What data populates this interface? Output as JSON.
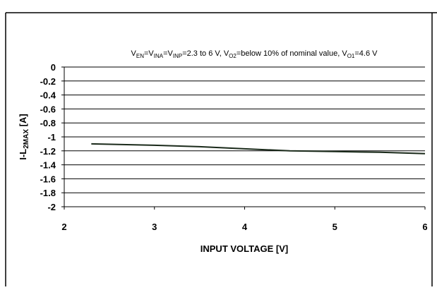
{
  "chart_data": {
    "type": "line",
    "title_parts": [
      "V",
      "EN",
      "=V",
      "INA",
      "=V",
      "INP",
      "=2.3 to 6 V, V",
      "O2",
      "=below 10% of nominal value, V",
      "O1",
      "=4.6 V"
    ],
    "ylabel_parts": [
      "I-L",
      "2MAX",
      " [A]"
    ],
    "xlabel": "INPUT VOLTAGE [V]",
    "x": [
      2.3,
      3,
      3.5,
      4,
      4.5,
      5,
      5.5,
      6
    ],
    "series": [
      {
        "color": "#1a2a1a",
        "values": [
          -1.1,
          -1.12,
          -1.14,
          -1.17,
          -1.2,
          -1.21,
          -1.22,
          -1.24
        ]
      }
    ],
    "xlim": [
      2,
      6
    ],
    "xticks": [
      2,
      3,
      4,
      5,
      6
    ],
    "ylim": [
      -2,
      0
    ],
    "yticks": [
      0,
      -0.2,
      -0.4,
      -0.6,
      -0.8,
      -1,
      -1.2,
      -1.4,
      -1.6,
      -1.8,
      -2
    ],
    "grid": true
  }
}
